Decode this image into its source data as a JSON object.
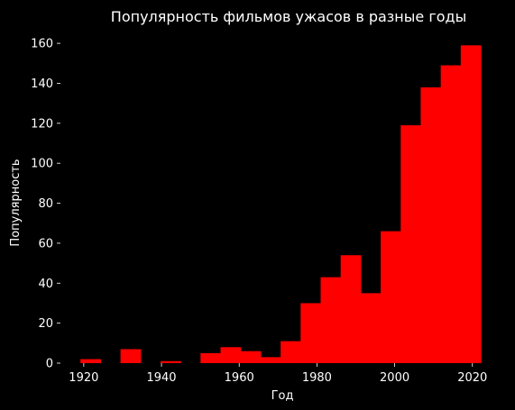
{
  "chart_data": {
    "type": "bar",
    "title": "Популярность фильмов ужасов в разные годы",
    "xlabel": "Год",
    "ylabel": "Популярность",
    "xlim": [
      1914,
      2024
    ],
    "ylim": [
      0,
      165
    ],
    "x_ticks": [
      1920,
      1940,
      1960,
      1980,
      2000,
      2020
    ],
    "y_ticks": [
      0,
      20,
      40,
      60,
      80,
      100,
      120,
      140,
      160
    ],
    "grid": false,
    "bin_width": 5.15,
    "bins": [
      {
        "start": 1914.0,
        "value": 0
      },
      {
        "start": 1919.15,
        "value": 2
      },
      {
        "start": 1924.3,
        "value": 0
      },
      {
        "start": 1929.45,
        "value": 7
      },
      {
        "start": 1934.6,
        "value": 0
      },
      {
        "start": 1939.75,
        "value": 1
      },
      {
        "start": 1944.9,
        "value": 0
      },
      {
        "start": 1950.05,
        "value": 5
      },
      {
        "start": 1955.2,
        "value": 8
      },
      {
        "start": 1960.35,
        "value": 6
      },
      {
        "start": 1965.5,
        "value": 3
      },
      {
        "start": 1970.65,
        "value": 11
      },
      {
        "start": 1975.8,
        "value": 30
      },
      {
        "start": 1980.95,
        "value": 43
      },
      {
        "start": 1986.1,
        "value": 54
      },
      {
        "start": 1991.25,
        "value": 35
      },
      {
        "start": 1996.4,
        "value": 66
      },
      {
        "start": 2001.55,
        "value": 119
      },
      {
        "start": 2006.7,
        "value": 138
      },
      {
        "start": 2011.85,
        "value": 149
      },
      {
        "start": 2017.0,
        "value": 159
      }
    ]
  },
  "colors": {
    "background": "#000000",
    "bar": "#ff0000",
    "text": "#ffffff"
  }
}
